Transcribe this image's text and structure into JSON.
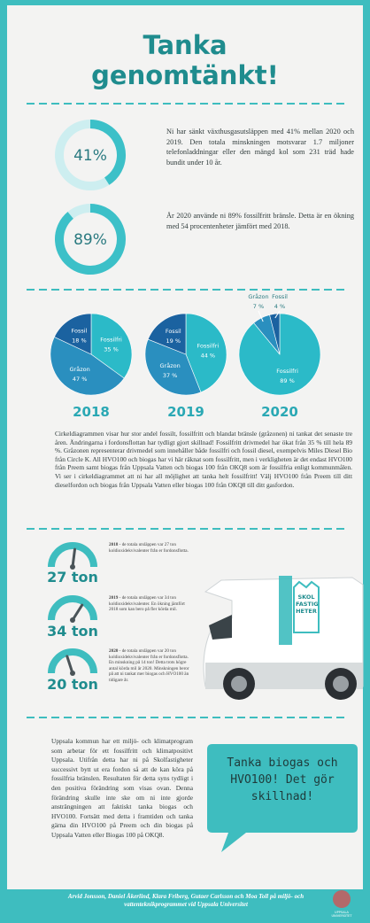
{
  "title": [
    "Tanka",
    "genomtänkt!"
  ],
  "donuts": [
    {
      "value": 41,
      "label": "41%",
      "text": "Ni har sänkt växthusgasutsläppen med 41% mellan 2020 och 2019. Den totala minskningen motsvarar 1.7 miljoner telefonladdningar eller den mängd kol som 231 träd hade bundit under 10 år."
    },
    {
      "value": 89,
      "label": "89%",
      "text": "År 2020 använde ni 89% fossilfritt bränsle. Detta är en ökning med 54 procentenheter jämfört med 2018."
    }
  ],
  "pies": [
    {
      "year": "2018",
      "slices": [
        {
          "name": "Fossilfri",
          "value": 35,
          "label": "35 %",
          "color": "#2bbac8"
        },
        {
          "name": "Gråzon",
          "value": 47,
          "label": "47 %",
          "color": "#2a8fbf"
        },
        {
          "name": "Fossil",
          "value": 18,
          "label": "18 %",
          "color": "#1b62a0"
        }
      ]
    },
    {
      "year": "2019",
      "slices": [
        {
          "name": "Fossilfri",
          "value": 44,
          "label": "44 %",
          "color": "#2bbac8"
        },
        {
          "name": "Gråzon",
          "value": 37,
          "label": "37 %",
          "color": "#2a8fbf"
        },
        {
          "name": "Fossil",
          "value": 19,
          "label": "19 %",
          "color": "#1b62a0"
        }
      ]
    },
    {
      "year": "2020",
      "slices": [
        {
          "name": "Fossilfri",
          "value": 89,
          "label": "89 %",
          "color": "#2bbac8"
        },
        {
          "name": "Gråzon",
          "value": 7,
          "label": "7 %",
          "color": "#2a8fbf"
        },
        {
          "name": "Fossil",
          "value": 4,
          "label": "4 %",
          "color": "#1b62a0"
        }
      ]
    }
  ],
  "pie_text": "Cirkeldiagrammen visar hur stor andel fossilt, fossilfritt och blandat bränsle (gråzonen) ni tankat det senaste tre åren. Ändringarna i fordonsflottan har tydligt gjort skillnad! Fossilfritt drivmedel har ökat från 35 % till hela 89 %. Gråzonen representerar drivmedel som innehåller både fossilfri och fossil diesel, exempelvis Miles Diesel Bio från Circle K. All HVO100 och biogas har vi här räknat som fossilfritt, men i verkligheten är det endast HVO100 från Preem samt biogas från Uppsala Vatten och biogas 100 från OKQ8 som är fossilfria enligt kommunmålen. Vi ser i cirkeldiagrammet att ni har all möjlighet att tanka helt fossilfritt! Välj HVO100 från Preem till ditt dieselfordon och biogas från Uppsala Vatten eller biogas 100 från OKQ8 till ditt gasfordon.",
  "gauges": [
    {
      "value": 27,
      "label": "27 ton",
      "year": "2018",
      "text": " - de totala utsläppen var 27 ton koldioxidekvivalenter från er fordonsflotta."
    },
    {
      "value": 34,
      "label": "34 ton",
      "year": "2019",
      "text": " - de totala utsläppen var 34 ton koldioxidekvivalenter. En ökning jämfört 2018 som kan bero på fler körda mil."
    },
    {
      "value": 20,
      "label": "20 ton",
      "year": "2020",
      "text": " - de totala utsläppen var 20 ton koldioxidekvivalenter från er fordonsflotta. En minskning på 14 ton! Detta trots högre antal körda mil år 2020. Minskningen beror på att ni tankat mer biogas och HVO100 än tidigare år."
    }
  ],
  "van_logo": [
    "SKOL",
    "FASTIG",
    "HETER"
  ],
  "closing_text": "Uppsala kommun har ett miljö- och klimatprogram som arbetar för ett fossilfritt och klimatpositivt Uppsala. Utifrån detta har ni på Skolfastigheter successivt bytt ut era fordon så att de kan köra på fossilfria bränslen. Resultaten för detta syns tydligt i den positiva förändring som visas ovan. Denna förändring skulle inte ske om ni inte gjorde ansträngningen att faktiskt tanka biogas och HVO100. Fortsätt med detta i framtiden och tanka gärna din HVO100 på Preem och din biogas på Uppsala Vatten eller Biogas 100 på OKQ8.",
  "bubble": "Tanka biogas och HVO100! Det gör skillnad!",
  "footer": "Arvid Jonsson, Daniel Åkerlind, Klara Friberg, Gutaer Carlsson och Moa Toll på miljö- och vattenteknikprogrammet vid Uppsala Universitet",
  "logo": [
    "UPPSALA",
    "UNIVERSITET"
  ]
}
